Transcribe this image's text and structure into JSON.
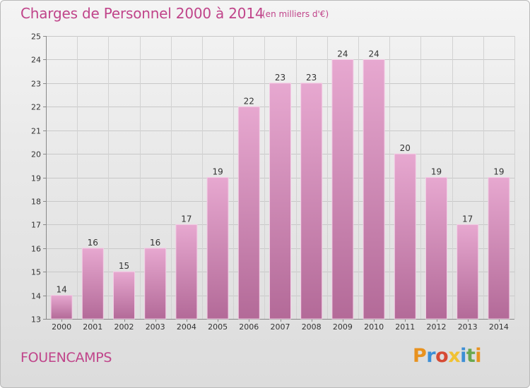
{
  "header": {
    "title": "Charges de Personnel 2000 à 2014",
    "unit": "(en milliers d'€)"
  },
  "footer": {
    "commune": "FOUENCAMPS",
    "brand": "Proxiti"
  },
  "colors": {
    "bar_top": "#e7a8d0",
    "bar_bottom": "#b36a98",
    "text_accent": "#c0448a",
    "brand_letters": [
      "#e8921f",
      "#3d8fd6",
      "#d64a34",
      "#f1c232",
      "#3d8fd6",
      "#6aa84f",
      "#e8921f"
    ]
  },
  "chart_data": {
    "type": "bar",
    "title": "Charges de Personnel 2000 à 2014",
    "subtitle": "(en milliers d'€)",
    "xlabel": "",
    "ylabel": "",
    "categories": [
      "2000",
      "2001",
      "2002",
      "2003",
      "2004",
      "2005",
      "2006",
      "2007",
      "2008",
      "2009",
      "2010",
      "2011",
      "2012",
      "2013",
      "2014"
    ],
    "values": [
      14,
      16,
      15,
      16,
      17,
      19,
      22,
      23,
      23,
      24,
      24,
      20,
      19,
      17,
      19
    ],
    "ylim": [
      13,
      25
    ],
    "yticks": [
      13,
      14,
      15,
      16,
      17,
      18,
      19,
      20,
      21,
      22,
      23,
      24,
      25
    ],
    "grid": true,
    "legend": "none"
  }
}
